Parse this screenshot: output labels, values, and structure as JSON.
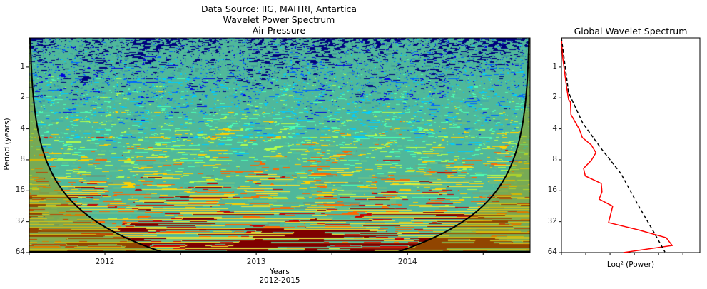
{
  "chart_data": [
    {
      "type": "heatmap",
      "title_lines": [
        "Data Source: IIG, MAITRI, Antartica",
        "Wavelet Power Spectrum",
        "Air Pressure"
      ],
      "xlabel": "Years",
      "xlabel_sub": "2012-2015",
      "ylabel": "Period (years)",
      "x_ticks": [
        2012,
        2013,
        2014
      ],
      "x_tick_labels": [
        "2012",
        "2013",
        "2014"
      ],
      "xlim": [
        2011.5,
        2014.81
      ],
      "y_ticks": [
        1,
        2,
        4,
        8,
        16,
        32,
        64
      ],
      "y_tick_labels": [
        "1",
        "2",
        "4",
        "8",
        "16",
        "32",
        "64"
      ],
      "ylim": [
        0.52,
        64
      ],
      "y_scale": "log2",
      "y_inverted": true,
      "colormap": [
        "#00007f",
        "#0000e0",
        "#0066ff",
        "#00ccff",
        "#4dffb2",
        "#b2ff4d",
        "#ffd000",
        "#ff6600",
        "#c80000",
        "#7f0000"
      ],
      "contour_line_color": "#4fb89a",
      "significance_line_color": "#000000",
      "cone_of_influence_color": "#000000",
      "outside_coi_tint": "#a89a00"
    },
    {
      "type": "line",
      "title": "Global Wavelet Spectrum",
      "xlabel": "Log² (Power)",
      "ylabel": "",
      "y_ticks": [
        1,
        2,
        4,
        8,
        16,
        32,
        64
      ],
      "y_tick_labels": [
        "1",
        "2",
        "4",
        "8",
        "16",
        "32",
        "64"
      ],
      "ylim": [
        0.52,
        64
      ],
      "y_scale": "log2",
      "y_inverted": true,
      "xlim": [
        0,
        5.7
      ],
      "x_ticks": [
        0,
        1,
        2,
        3,
        4,
        5
      ],
      "series": [
        {
          "style": "solid",
          "color": "#ff0000",
          "x": [
            0,
            0.05,
            0.2,
            0.29,
            0.37,
            0.39,
            0.74,
            0.86,
            1.23,
            1.42,
            1.23,
            0.91,
            0.98,
            1.64,
            1.67,
            1.55,
            2.11,
            1.94,
            3.19,
            4.31,
            4.56,
            2.55
          ],
          "y": [
            0.52,
            0.8,
            1.5,
            2.07,
            2.19,
            2.9,
            4.06,
            4.86,
            5.74,
            6.82,
            8.1,
            9.7,
            11.5,
            13.6,
            16.4,
            19.3,
            22.6,
            32.7,
            38.6,
            45.9,
            54.6,
            64
          ]
        },
        {
          "style": "dashed",
          "color": "#000000",
          "x": [
            0,
            0.29,
            0.88,
            1.67,
            2.45,
            3.14,
            3.82,
            4.26
          ],
          "y": [
            0.52,
            1.77,
            3.53,
            6.36,
            10.9,
            21.7,
            41.1,
            63.1
          ]
        }
      ]
    }
  ]
}
